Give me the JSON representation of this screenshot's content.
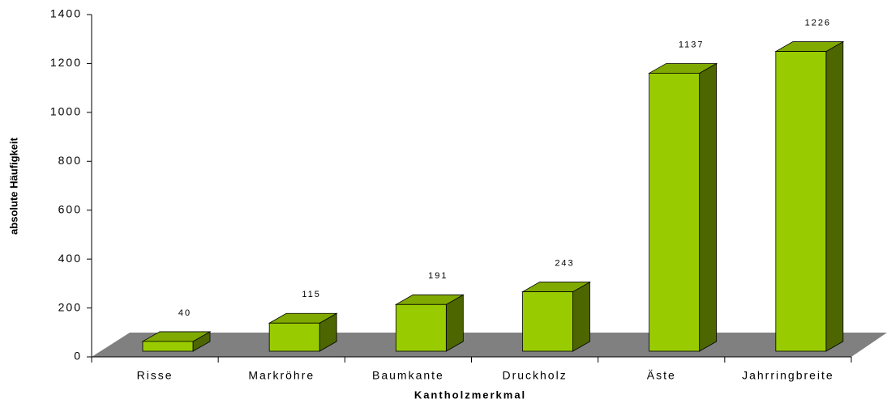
{
  "chart_data": {
    "type": "bar3d",
    "x_label": "Kantholzmerkmal",
    "y_label": "absolute Häufigkeit",
    "categories": [
      "Risse",
      "Markröhre",
      "Baumkante",
      "Druckholz",
      "Äste",
      "Jahrringbreite"
    ],
    "values": [
      40,
      115,
      191,
      243,
      1137,
      1226
    ],
    "color": "#99cc00",
    "ylim": [
      0,
      1400
    ],
    "yticks": [
      0,
      200,
      400,
      600,
      800,
      1000,
      1200,
      1400
    ]
  }
}
